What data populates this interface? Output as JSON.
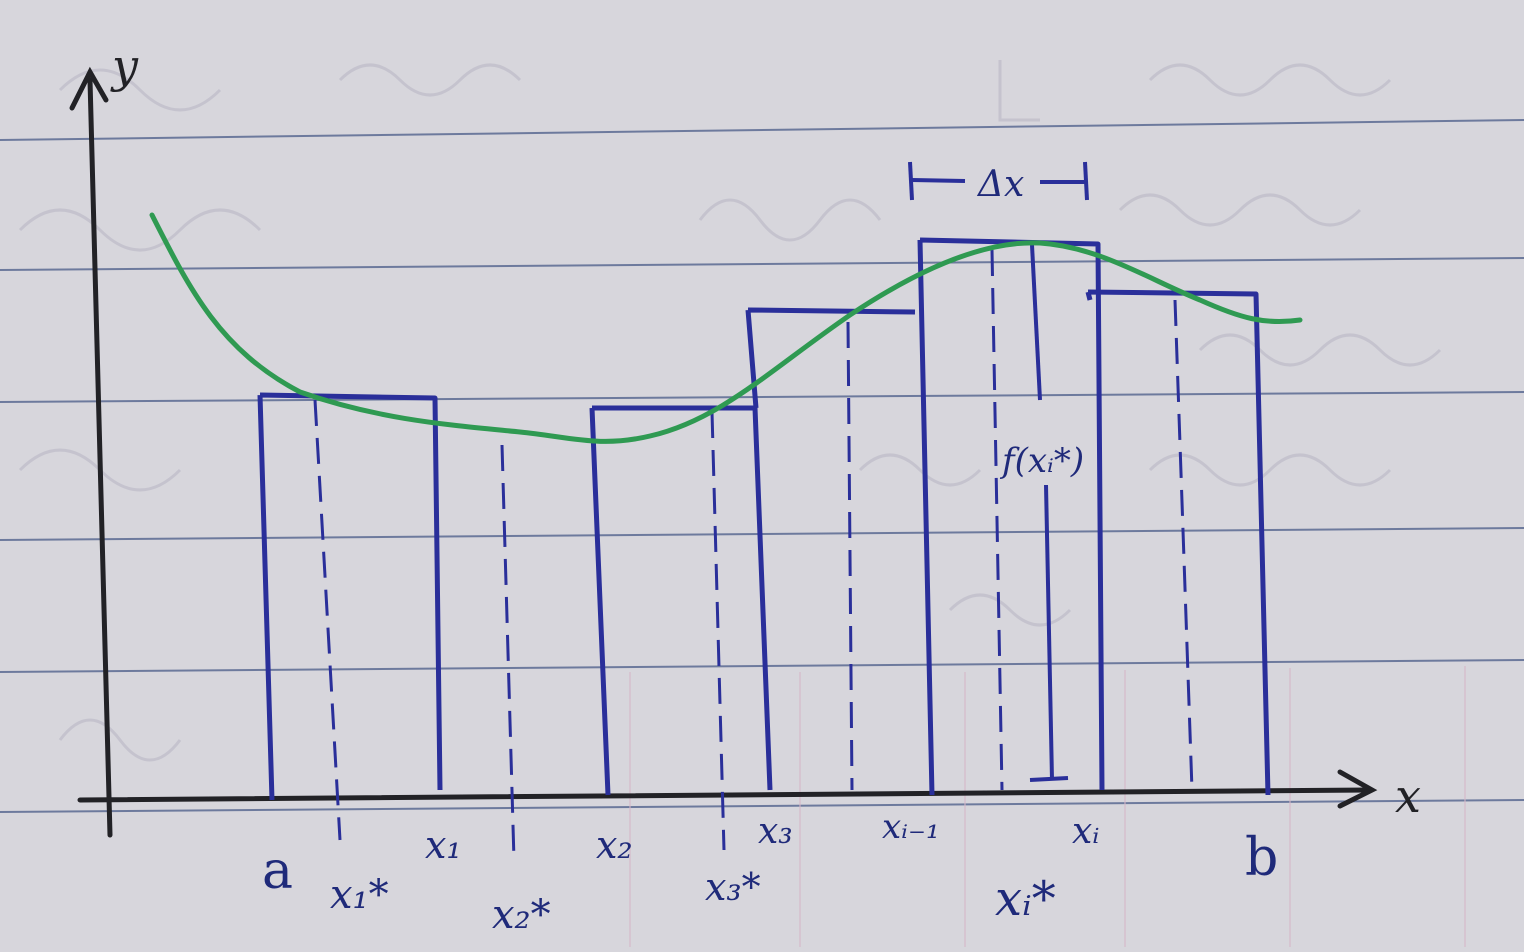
{
  "colors": {
    "paper": "#d7d6dc",
    "rule_line": "#5b6a92",
    "pencil": "#222226",
    "ink_blue": "#2a2f9a",
    "curve_green": "#2f9a52",
    "faded_writing": "#b7b5c2",
    "pink_grid": "#d6b7c8"
  },
  "labels": {
    "y_axis": "y",
    "x_axis": "x",
    "a": "a",
    "b": "b",
    "x1": "x₁",
    "x2": "x₂",
    "x3": "x₃",
    "xi_minus_1": "xᵢ₋₁",
    "xi": "xᵢ",
    "x1_star": "x₁*",
    "x2_star": "x₂*",
    "x3_star": "x₃*",
    "xi_star": "xᵢ*",
    "delta_x": "Δx",
    "f_xi_star": "f(xᵢ*)"
  }
}
